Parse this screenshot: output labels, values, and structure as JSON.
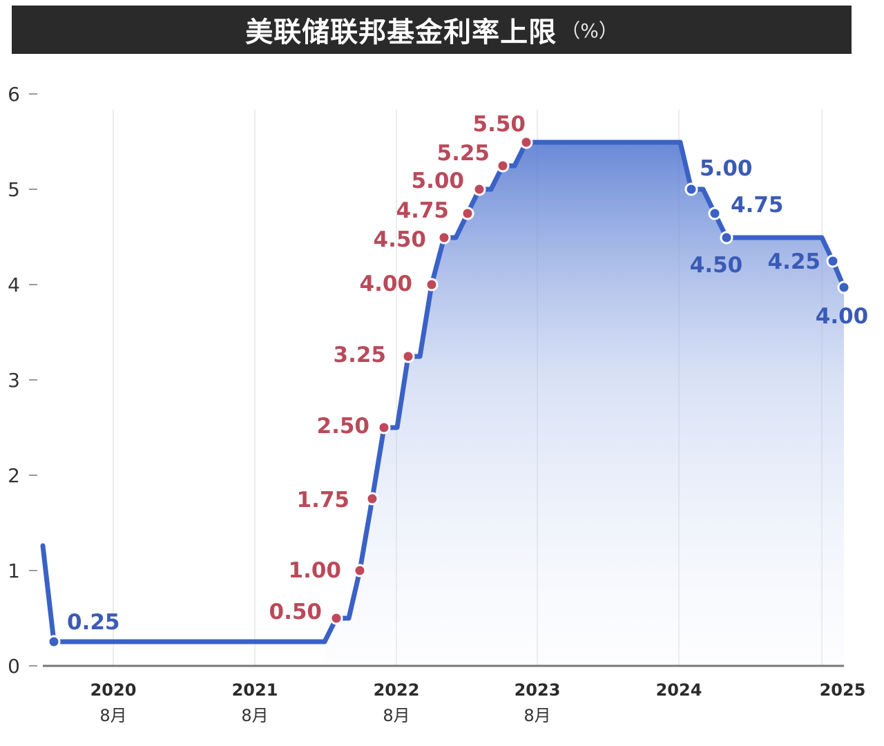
{
  "title": "美联储联邦基金利率上限",
  "unit": "（%）",
  "colors": {
    "line": "#3a62c6",
    "hike_dot": "#c0485a",
    "hike_label": "#b94a5a",
    "cut_label": "#3a5bb5",
    "title_bg": "#2a2a2a"
  },
  "chart_data": {
    "type": "area",
    "title": "美联储联邦基金利率上限（%）",
    "xlabel": "",
    "ylabel": "",
    "ylim": [
      0,
      6
    ],
    "yticks": [
      "0",
      "1",
      "2",
      "3",
      "4",
      "5",
      "6"
    ],
    "xticks": [
      {
        "year": "2020",
        "month": "8月"
      },
      {
        "year": "2021",
        "month": "8月"
      },
      {
        "year": "2022",
        "month": "8月"
      },
      {
        "year": "2023",
        "month": "8月"
      },
      {
        "year": "2024",
        "month": ""
      },
      {
        "year": "2025",
        "month": ""
      }
    ],
    "grid": "vertical gridlines at year ticks",
    "legend": "none",
    "series": [
      {
        "name": "联邦基金利率上限",
        "points": [
          {
            "date": "2020-03",
            "value": 1.25,
            "label": ""
          },
          {
            "date": "2020-03",
            "value": 0.25,
            "label": "0.25",
            "kind": "cut"
          },
          {
            "date": "2022-03",
            "value": 0.5,
            "label": "0.50",
            "kind": "hike"
          },
          {
            "date": "2022-05",
            "value": 1.0,
            "label": "1.00",
            "kind": "hike"
          },
          {
            "date": "2022-06",
            "value": 1.75,
            "label": "1.75",
            "kind": "hike"
          },
          {
            "date": "2022-07",
            "value": 2.5,
            "label": "2.50",
            "kind": "hike"
          },
          {
            "date": "2022-09",
            "value": 3.25,
            "label": "3.25",
            "kind": "hike"
          },
          {
            "date": "2022-11",
            "value": 4.0,
            "label": "4.00",
            "kind": "hike"
          },
          {
            "date": "2022-12",
            "value": 4.5,
            "label": "4.50",
            "kind": "hike"
          },
          {
            "date": "2023-02",
            "value": 4.75,
            "label": "4.75",
            "kind": "hike"
          },
          {
            "date": "2023-03",
            "value": 5.0,
            "label": "5.00",
            "kind": "hike"
          },
          {
            "date": "2023-05",
            "value": 5.25,
            "label": "5.25",
            "kind": "hike"
          },
          {
            "date": "2023-07",
            "value": 5.5,
            "label": "5.50",
            "kind": "hike"
          },
          {
            "date": "2024-09",
            "value": 5.0,
            "label": "5.00",
            "kind": "cut"
          },
          {
            "date": "2024-11",
            "value": 4.75,
            "label": "4.75",
            "kind": "cut"
          },
          {
            "date": "2024-12",
            "value": 4.5,
            "label": "4.50",
            "kind": "cut"
          },
          {
            "date": "2025-09",
            "value": 4.25,
            "label": "4.25",
            "kind": "cut"
          },
          {
            "date": "2025-10",
            "value": 4.0,
            "label": "4.00",
            "kind": "cut"
          }
        ]
      }
    ]
  }
}
